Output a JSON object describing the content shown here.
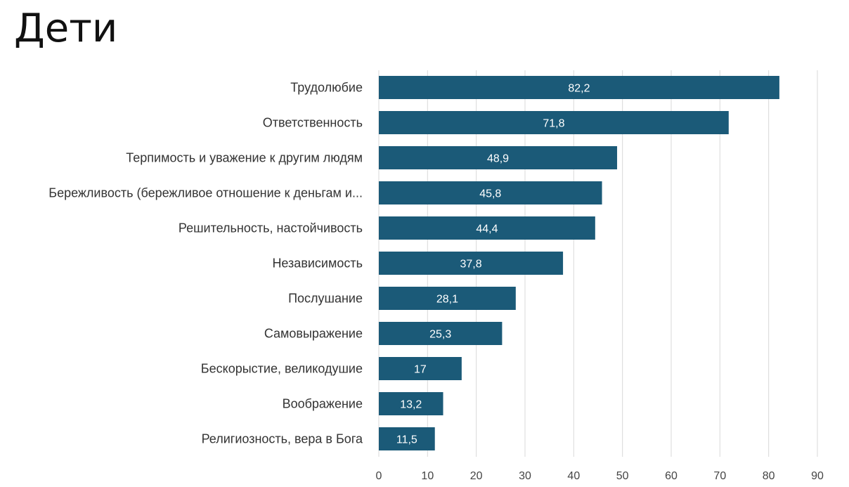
{
  "title": "Дети",
  "chart_data": {
    "type": "bar",
    "orientation": "horizontal",
    "categories": [
      "Трудолюбие",
      "Ответственность",
      "Терпимость и уважение к другим людям",
      "Бережливость (бережливое отношение к деньгам и...",
      "Решительность, настойчивость",
      "Независимость",
      "Послушание",
      "Самовыражение",
      "Бескорыстие, великодушие",
      "Воображение",
      "Религиозность, вера в Бога"
    ],
    "values": [
      82.2,
      71.8,
      48.9,
      45.8,
      44.4,
      37.8,
      28.1,
      25.3,
      17,
      13.2,
      11.5
    ],
    "value_labels": [
      "82,2",
      "71,8",
      "48,9",
      "45,8",
      "44,4",
      "37,8",
      "28,1",
      "25,3",
      "17",
      "13,2",
      "11,5"
    ],
    "xlim": [
      0,
      90
    ],
    "xticks": [
      "0",
      "10",
      "20",
      "30",
      "40",
      "50",
      "60",
      "70",
      "80",
      "90"
    ],
    "grid": "vertical",
    "bar_color": "#1b5a78"
  }
}
